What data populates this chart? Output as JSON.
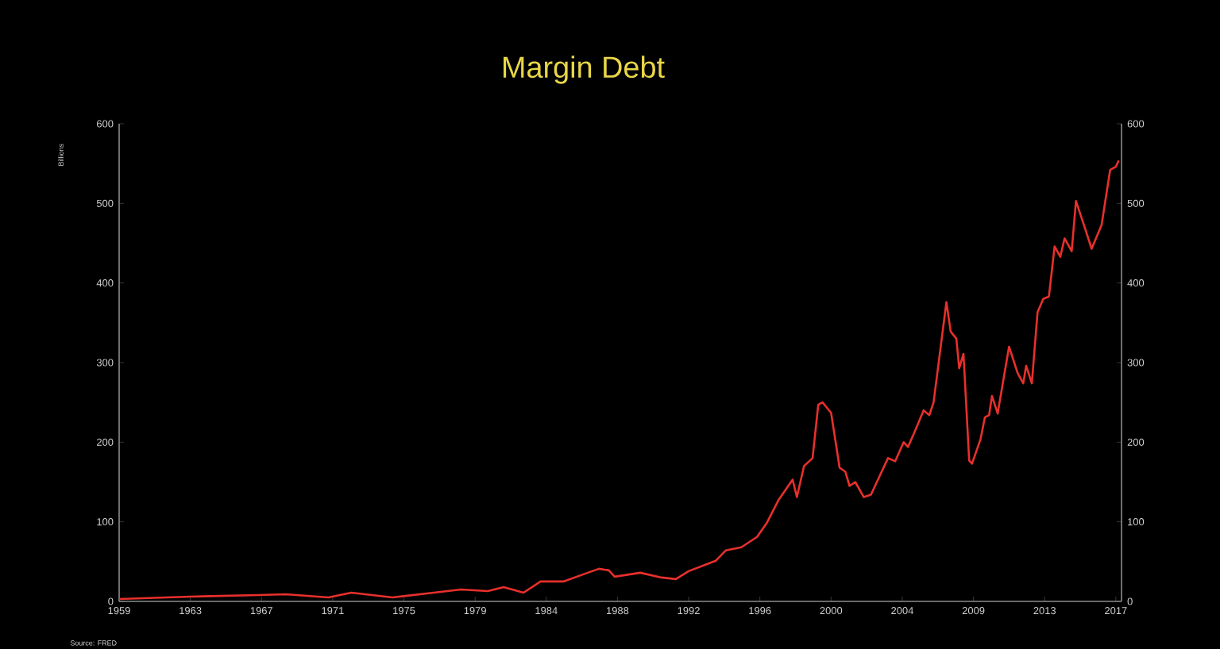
{
  "chart_data": {
    "type": "line",
    "title": "Margin Debt",
    "ylabel": "Billions",
    "annotations": [
      "Source: FRED"
    ],
    "x": [
      "1959-01",
      "1963-03",
      "1967-03",
      "1968-10",
      "1971-04",
      "1972-08",
      "1975-01",
      "1977-06",
      "1979-01",
      "1980-08",
      "1981-07",
      "1982-09",
      "1983-09",
      "1985-01",
      "1986-03",
      "1987-02",
      "1987-09",
      "1988-01",
      "1989-07",
      "1990-10",
      "1991-08",
      "1992-05",
      "1993-12",
      "1994-07",
      "1995-06",
      "1996-05",
      "1996-12",
      "1997-08",
      "1998-06",
      "1998-09",
      "1999-02",
      "1999-08",
      "1999-12",
      "2000-03",
      "2000-09",
      "2001-03",
      "2001-07",
      "2001-10",
      "2002-02",
      "2002-08",
      "2003-01",
      "2004-01",
      "2004-06",
      "2004-12",
      "2005-03",
      "2005-07",
      "2006-02",
      "2006-06",
      "2006-09",
      "2007-06",
      "2007-09",
      "2008-01",
      "2008-03",
      "2008-06",
      "2008-10",
      "2008-12",
      "2009-06",
      "2009-09",
      "2009-12",
      "2010-02",
      "2010-06",
      "2011-02",
      "2011-08",
      "2011-12",
      "2012-02",
      "2012-06",
      "2012-10",
      "2013-02",
      "2013-06",
      "2013-10",
      "2014-02",
      "2014-05",
      "2014-10",
      "2015-01",
      "2015-06",
      "2015-12",
      "2016-07",
      "2017-01",
      "2017-05",
      "2017-07"
    ],
    "series": [
      {
        "color": "#e8302c",
        "values": [
          3,
          6,
          8,
          9,
          5,
          11,
          5,
          11,
          15,
          13,
          18,
          11,
          25,
          25,
          34,
          41,
          39,
          31,
          36,
          30,
          28,
          38,
          51,
          64,
          68,
          81,
          99,
          127,
          153,
          131,
          170,
          180,
          247,
          250,
          237,
          168,
          163,
          145,
          150,
          131,
          134,
          180,
          176,
          200,
          194,
          210,
          240,
          234,
          250,
          376,
          339,
          330,
          293,
          311,
          177,
          173,
          204,
          231,
          234,
          258,
          236,
          320,
          287,
          274,
          296,
          274,
          363,
          380,
          383,
          446,
          433,
          456,
          440,
          503,
          476,
          443,
          473,
          542,
          546,
          554
        ]
      }
    ],
    "xlim": [
      "1959-01",
      "2017-09"
    ],
    "xticks": [
      {
        "value": "1959-01",
        "label": "1959"
      },
      {
        "value": "1963-03",
        "label": "1963"
      },
      {
        "value": "1967-05",
        "label": "1967"
      },
      {
        "value": "1971-07",
        "label": "1971"
      },
      {
        "value": "1975-09",
        "label": "1975"
      },
      {
        "value": "1979-11",
        "label": "1979"
      },
      {
        "value": "1984-01",
        "label": "1984"
      },
      {
        "value": "1988-03",
        "label": "1988"
      },
      {
        "value": "1992-05",
        "label": "1992"
      },
      {
        "value": "1996-07",
        "label": "1996"
      },
      {
        "value": "2000-09",
        "label": "2000"
      },
      {
        "value": "2004-11",
        "label": "2004"
      },
      {
        "value": "2009-01",
        "label": "2009"
      },
      {
        "value": "2013-03",
        "label": "2013"
      },
      {
        "value": "2017-05",
        "label": "2017"
      }
    ],
    "ylim": [
      0,
      600
    ],
    "yticks": [
      0,
      100,
      200,
      300,
      400,
      500,
      600
    ],
    "y2lim": [
      0,
      600
    ],
    "y2ticks": [
      0,
      100,
      200,
      300,
      400,
      500,
      600
    ]
  }
}
